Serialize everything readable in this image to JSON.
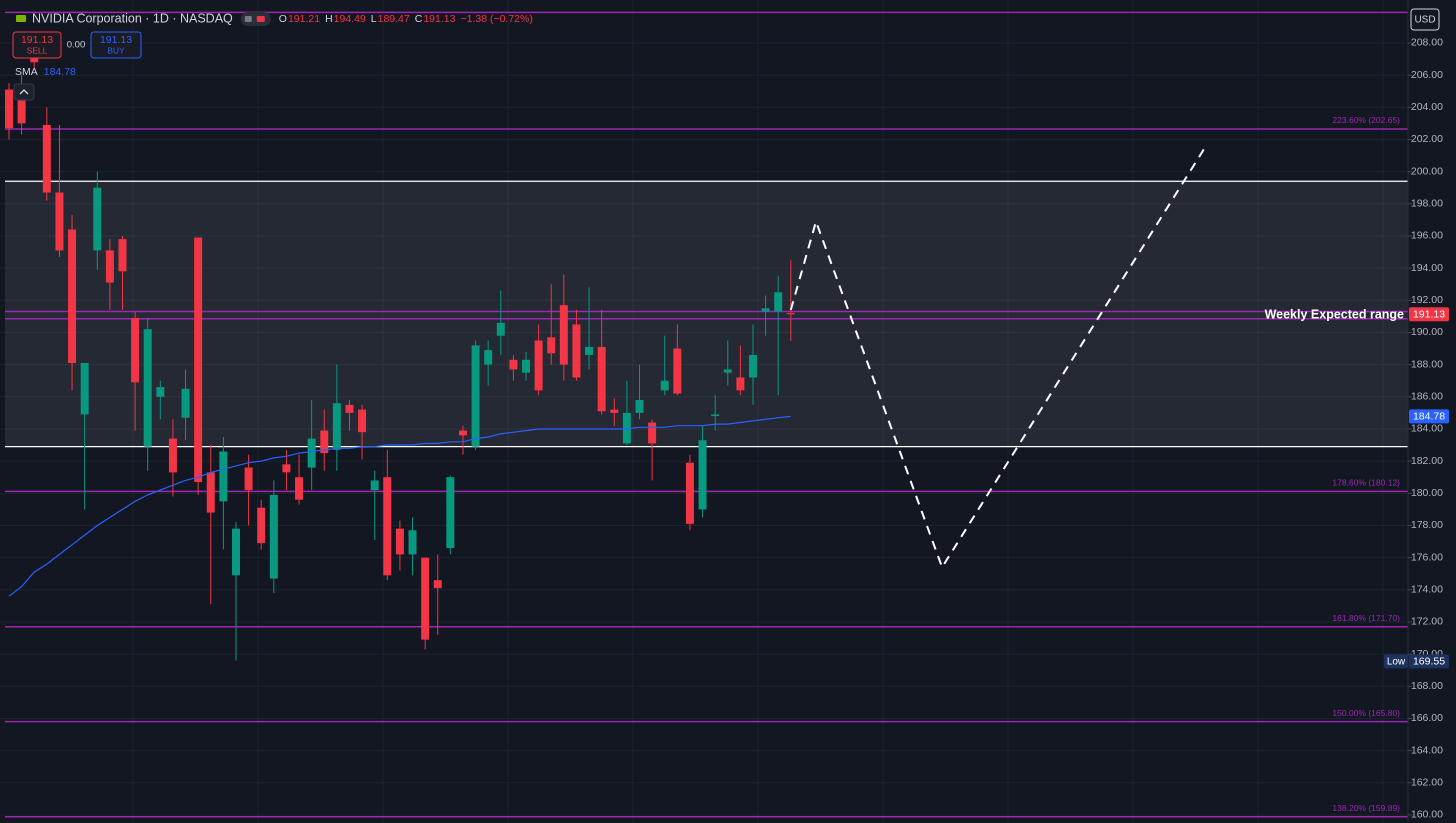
{
  "chart_data": {
    "type": "candlestick",
    "title": "NVIDIA Corporation · 1D · NASDAQ",
    "ohlc_header": [
      {
        "label": "O",
        "value": 191.21
      },
      {
        "label": "H",
        "value": 194.49
      },
      {
        "label": "L",
        "value": 189.47
      },
      {
        "label": "C",
        "value": 191.13
      }
    ],
    "change": "−1.38 (−0.72%)",
    "sell": {
      "value": 191.13,
      "label": "SELL"
    },
    "spread": "0.00",
    "buy": {
      "value": 191.13,
      "label": "BUY"
    },
    "currency": "USD",
    "up_color": "#089981",
    "down_color": "#f23645",
    "open": [
      205.1,
      205.0,
      207.5,
      202.9,
      198.7,
      196.4,
      184.9,
      195.1,
      195.1,
      195.8,
      190.9,
      182.9,
      186.0,
      183.4,
      184.7,
      195.9,
      181.3,
      179.5,
      174.9,
      181.6,
      179.1,
      174.7,
      181.8,
      181.0,
      181.6,
      183.9,
      182.7,
      185.5,
      185.2,
      180.2,
      181.0,
      177.8,
      176.2,
      176.0,
      174.6,
      176.6,
      183.9,
      182.9,
      188.0,
      189.8,
      188.3,
      187.5,
      189.5,
      189.7,
      191.7,
      190.5,
      188.6,
      189.1,
      185.2,
      183.1,
      185.0,
      184.4,
      186.4,
      189.0,
      181.9,
      179.0,
      184.8,
      187.5,
      187.2,
      187.2,
      191.3,
      191.3,
      191.21
    ],
    "high": [
      205.5,
      206.0,
      208.3,
      204.0,
      202.9,
      197.3,
      188.1,
      200.0,
      195.8,
      196.0,
      191.3,
      190.9,
      187.0,
      184.6,
      187.7,
      195.9,
      183.0,
      183.5,
      178.2,
      182.4,
      179.6,
      180.8,
      182.7,
      182.4,
      185.8,
      185.2,
      188.0,
      185.8,
      185.5,
      181.4,
      182.7,
      178.3,
      178.5,
      176.0,
      176.2,
      181.1,
      184.2,
      189.5,
      189.5,
      192.6,
      188.6,
      188.8,
      190.5,
      193.0,
      193.6,
      191.4,
      192.8,
      191.4,
      185.9,
      187.0,
      188.0,
      184.6,
      189.8,
      190.5,
      182.4,
      184.2,
      186.1,
      189.5,
      189.2,
      190.5,
      192.3,
      193.5,
      194.49
    ],
    "low": [
      202.0,
      202.3,
      206.4,
      198.2,
      194.7,
      186.4,
      179.0,
      193.9,
      191.4,
      191.4,
      183.9,
      181.4,
      184.6,
      179.8,
      183.3,
      179.9,
      173.1,
      176.5,
      169.6,
      178.0,
      176.5,
      173.8,
      180.2,
      179.3,
      180.2,
      181.4,
      181.4,
      183.9,
      182.1,
      177.1,
      174.6,
      175.2,
      174.9,
      170.3,
      171.2,
      176.2,
      182.4,
      182.7,
      186.7,
      188.6,
      187.0,
      187.0,
      186.1,
      188.0,
      187.0,
      187.0,
      187.7,
      184.9,
      184.2,
      183.0,
      184.6,
      180.8,
      186.1,
      186.1,
      177.7,
      178.5,
      183.9,
      186.7,
      186.1,
      185.5,
      189.8,
      186.1,
      189.47
    ],
    "close": [
      202.7,
      203.0,
      206.8,
      198.7,
      195.1,
      188.1,
      188.1,
      199.0,
      193.1,
      193.8,
      186.9,
      190.2,
      186.6,
      181.3,
      186.5,
      180.7,
      178.8,
      182.6,
      177.8,
      180.2,
      176.9,
      179.9,
      181.3,
      179.6,
      183.4,
      182.5,
      185.6,
      185.0,
      183.8,
      180.8,
      174.9,
      176.2,
      177.7,
      170.9,
      174.1,
      181.0,
      183.6,
      189.2,
      188.9,
      190.6,
      187.7,
      188.3,
      186.4,
      188.7,
      188.0,
      187.2,
      189.1,
      185.1,
      185.0,
      185.0,
      185.8,
      183.1,
      187.0,
      186.2,
      178.1,
      183.3,
      184.9,
      187.7,
      186.4,
      188.6,
      191.5,
      192.5,
      191.13
    ],
    "sma": {
      "name": "SMA",
      "color": "#2962ff",
      "last": 184.78,
      "values": [
        173.6,
        174.2,
        175.1,
        175.6,
        176.2,
        176.8,
        177.4,
        178.0,
        178.5,
        179.0,
        179.5,
        179.9,
        180.2,
        180.5,
        180.8,
        181.0,
        181.3,
        181.5,
        181.7,
        181.9,
        182.0,
        182.2,
        182.3,
        182.5,
        182.6,
        182.7,
        182.8,
        182.8,
        182.9,
        182.9,
        183.0,
        183.0,
        183.0,
        183.1,
        183.1,
        183.2,
        183.2,
        183.4,
        183.5,
        183.7,
        183.8,
        183.9,
        184.0,
        184.0,
        184.0,
        184.0,
        184.0,
        184.0,
        184.0,
        184.0,
        184.1,
        184.1,
        184.1,
        184.2,
        184.2,
        184.2,
        184.3,
        184.3,
        184.4,
        184.5,
        184.6,
        184.7,
        184.78
      ]
    },
    "levels": [
      {
        "value": 209.9,
        "color": "#9c27b0"
      },
      {
        "value": 202.65,
        "label": "223.60% (202.65)",
        "color": "#9c27b0"
      },
      {
        "value": 191.3,
        "color": "#9c27b0"
      },
      {
        "value": 190.85,
        "color": "#9c27b0"
      },
      {
        "value": 180.12,
        "label": "178.60% (180.12)",
        "color": "#9c27b0"
      },
      {
        "value": 171.7,
        "label": "161.80% (171.70)",
        "color": "#9c27b0"
      },
      {
        "value": 165.8,
        "label": "150.00% (165.80)",
        "color": "#9c27b0"
      },
      {
        "value": 159.89,
        "label": "138.20% (159.89)",
        "color": "#9c27b0"
      }
    ],
    "zone": {
      "high": 199.4,
      "low": 182.9,
      "color": "#ffffff"
    },
    "annotation": "Weekly Expected range",
    "projection": {
      "x": [
        62,
        64,
        74,
        95
      ],
      "values": [
        191.4,
        196.9,
        175.4,
        201.7
      ],
      "color": "#ffffff"
    },
    "price_tags": [
      {
        "value": 191.13,
        "color": "#f23645"
      },
      {
        "value": 184.78,
        "color": "#2962ff"
      },
      {
        "value": 169.55,
        "label": "Low",
        "color": "#1e3260"
      }
    ],
    "ylim": [
      159.5,
      210.67
    ],
    "yticks": [
      {
        "value": 160,
        "label": "160.00"
      },
      {
        "value": 162,
        "label": "162.00"
      },
      {
        "value": 164,
        "label": "164.00"
      },
      {
        "value": 166,
        "label": "166.00"
      },
      {
        "value": 168,
        "label": "168.00"
      },
      {
        "value": 170,
        "label": "170.00"
      },
      {
        "value": 172,
        "label": "172.00"
      },
      {
        "value": 174,
        "label": "174.00"
      },
      {
        "value": 176,
        "label": "176.00"
      },
      {
        "value": 178,
        "label": "178.00"
      },
      {
        "value": 180,
        "label": "180.00"
      },
      {
        "value": 182,
        "label": "182.00"
      },
      {
        "value": 184,
        "label": "184.00"
      },
      {
        "value": 186,
        "label": "186.00"
      },
      {
        "value": 188,
        "label": "188.00"
      },
      {
        "value": 190,
        "label": "190.00"
      },
      {
        "value": 192,
        "label": "192.00"
      },
      {
        "value": 194,
        "label": "194.00"
      },
      {
        "value": 196,
        "label": "196.00"
      },
      {
        "value": 198,
        "label": "198.00"
      },
      {
        "value": 200,
        "label": "200.00"
      },
      {
        "value": 202,
        "label": "202.00"
      },
      {
        "value": 204,
        "label": "204.00"
      },
      {
        "value": 206,
        "label": "206.00"
      },
      {
        "value": 208,
        "label": "208.00"
      }
    ],
    "grid": true
  }
}
